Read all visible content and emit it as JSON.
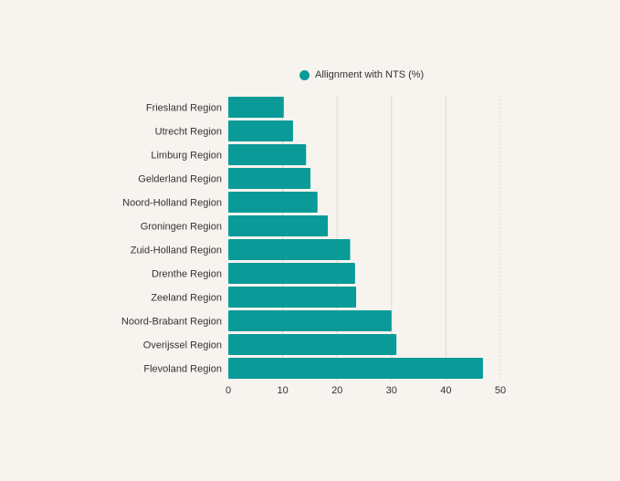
{
  "chart_data": {
    "type": "bar",
    "orientation": "horizontal",
    "categories": [
      "Friesland Region",
      "Utrecht Region",
      "Limburg Region",
      "Gelderland Region",
      "Noord-Holland Region",
      "Groningen Region",
      "Zuid-Holland Region",
      "Drenthe Region",
      "Zeeland Region",
      "Noord-Brabant Region",
      "Overijssel Region",
      "Flevoland Region"
    ],
    "series": [
      {
        "name": "Allignment with NTS (%)",
        "values": [
          10.2,
          11.9,
          14.3,
          15.1,
          16.4,
          18.3,
          22.4,
          23.3,
          23.5,
          30.0,
          30.9,
          46.8
        ]
      }
    ],
    "xlim": [
      0,
      50
    ],
    "xticks": [
      "0",
      "10",
      "20",
      "30",
      "40",
      "50"
    ],
    "grid": true,
    "legend": "top",
    "colors": {
      "bar": "#0a9b98",
      "grid": "#dcd8d2",
      "background": "#f7f4ef"
    }
  }
}
